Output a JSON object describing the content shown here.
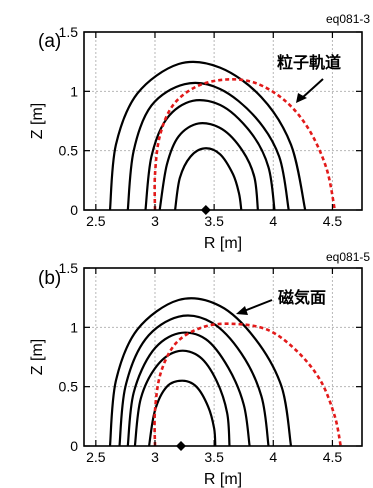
{
  "chart_data": [
    {
      "type": "line",
      "panel_label": "(a)",
      "code": "eq081-3",
      "xlabel": "R [m]",
      "ylabel": "Z [m]",
      "xlim": [
        2.4,
        4.75
      ],
      "ylim": [
        0,
        1.5
      ],
      "xticks": [
        "2.5",
        "3",
        "3.5",
        "4",
        "4.5"
      ],
      "yticks": [
        "0",
        "0.5",
        "1",
        "1.5"
      ],
      "grid": true,
      "axis_point": {
        "R": 3.43,
        "Z": 0
      },
      "series": [
        {
          "kind": "flux_surface",
          "points": [
            [
              2.62,
              0
            ],
            [
              2.67,
              0.55
            ],
            [
              2.85,
              0.98
            ],
            [
              3.2,
              1.23
            ],
            [
              3.55,
              1.2
            ],
            [
              3.9,
              0.95
            ],
            [
              4.15,
              0.55
            ],
            [
              4.27,
              0
            ]
          ]
        },
        {
          "kind": "flux_surface",
          "points": [
            [
              2.77,
              0
            ],
            [
              2.82,
              0.5
            ],
            [
              2.97,
              0.88
            ],
            [
              3.25,
              1.06
            ],
            [
              3.55,
              1.02
            ],
            [
              3.85,
              0.78
            ],
            [
              4.05,
              0.45
            ],
            [
              4.13,
              0
            ]
          ]
        },
        {
          "kind": "flux_surface",
          "points": [
            [
              2.92,
              0
            ],
            [
              2.97,
              0.45
            ],
            [
              3.1,
              0.77
            ],
            [
              3.32,
              0.92
            ],
            [
              3.58,
              0.87
            ],
            [
              3.82,
              0.64
            ],
            [
              3.96,
              0.36
            ],
            [
              4.01,
              0
            ]
          ]
        },
        {
          "kind": "flux_surface",
          "points": [
            [
              3.04,
              0
            ],
            [
              3.1,
              0.38
            ],
            [
              3.2,
              0.62
            ],
            [
              3.37,
              0.73
            ],
            [
              3.57,
              0.68
            ],
            [
              3.74,
              0.5
            ],
            [
              3.84,
              0.28
            ],
            [
              3.87,
              0
            ]
          ]
        },
        {
          "kind": "flux_surface",
          "points": [
            [
              3.17,
              0
            ],
            [
              3.21,
              0.27
            ],
            [
              3.3,
              0.45
            ],
            [
              3.42,
              0.52
            ],
            [
              3.55,
              0.47
            ],
            [
              3.66,
              0.3
            ],
            [
              3.71,
              0.14
            ],
            [
              3.73,
              0
            ]
          ]
        },
        {
          "kind": "particle_orbit",
          "points": [
            [
              3.0,
              0
            ],
            [
              3.0,
              0.3
            ],
            [
              3.04,
              0.62
            ],
            [
              3.15,
              0.88
            ],
            [
              3.35,
              1.04
            ],
            [
              3.6,
              1.1
            ],
            [
              3.85,
              1.07
            ],
            [
              4.1,
              0.92
            ],
            [
              4.3,
              0.68
            ],
            [
              4.45,
              0.35
            ],
            [
              4.52,
              0
            ]
          ]
        }
      ],
      "annotation": {
        "text": "粒子軌道",
        "target": "particle_orbit"
      }
    },
    {
      "type": "line",
      "panel_label": "(b)",
      "code": "eq081-5",
      "xlabel": "R [m]",
      "ylabel": "Z [m]",
      "xlim": [
        2.4,
        4.75
      ],
      "ylim": [
        0,
        1.5
      ],
      "xticks": [
        "2.5",
        "3",
        "3.5",
        "4",
        "4.5"
      ],
      "yticks": [
        "0",
        "0.5",
        "1",
        "1.5"
      ],
      "grid": true,
      "axis_point": {
        "R": 3.22,
        "Z": 0
      },
      "series": [
        {
          "kind": "flux_surface",
          "points": [
            [
              2.62,
              0
            ],
            [
              2.67,
              0.55
            ],
            [
              2.85,
              0.98
            ],
            [
              3.2,
              1.23
            ],
            [
              3.55,
              1.18
            ],
            [
              3.85,
              0.9
            ],
            [
              4.07,
              0.5
            ],
            [
              4.15,
              0
            ]
          ]
        },
        {
          "kind": "flux_surface",
          "points": [
            [
              2.7,
              0
            ],
            [
              2.75,
              0.5
            ],
            [
              2.92,
              0.9
            ],
            [
              3.2,
              1.09
            ],
            [
              3.48,
              1.04
            ],
            [
              3.73,
              0.78
            ],
            [
              3.9,
              0.42
            ],
            [
              3.96,
              0
            ]
          ]
        },
        {
          "kind": "flux_surface",
          "points": [
            [
              2.77,
              0
            ],
            [
              2.82,
              0.45
            ],
            [
              2.98,
              0.8
            ],
            [
              3.2,
              0.95
            ],
            [
              3.43,
              0.9
            ],
            [
              3.62,
              0.66
            ],
            [
              3.75,
              0.35
            ],
            [
              3.8,
              0
            ]
          ]
        },
        {
          "kind": "flux_surface",
          "points": [
            [
              2.83,
              0
            ],
            [
              2.88,
              0.4
            ],
            [
              3.02,
              0.68
            ],
            [
              3.2,
              0.8
            ],
            [
              3.38,
              0.75
            ],
            [
              3.52,
              0.55
            ],
            [
              3.61,
              0.28
            ],
            [
              3.63,
              0
            ]
          ]
        },
        {
          "kind": "flux_surface",
          "points": [
            [
              2.95,
              0
            ],
            [
              3.0,
              0.3
            ],
            [
              3.1,
              0.5
            ],
            [
              3.23,
              0.55
            ],
            [
              3.35,
              0.5
            ],
            [
              3.45,
              0.33
            ],
            [
              3.5,
              0.15
            ],
            [
              3.51,
              0
            ]
          ]
        },
        {
          "kind": "particle_orbit",
          "points": [
            [
              3.0,
              0
            ],
            [
              3.0,
              0.3
            ],
            [
              3.05,
              0.62
            ],
            [
              3.18,
              0.87
            ],
            [
              3.4,
              1.0
            ],
            [
              3.65,
              1.03
            ],
            [
              3.95,
              0.98
            ],
            [
              4.2,
              0.8
            ],
            [
              4.4,
              0.55
            ],
            [
              4.52,
              0.25
            ],
            [
              4.57,
              0
            ]
          ]
        }
      ],
      "annotation": {
        "text": "磁気面",
        "target": "flux_surface"
      }
    }
  ],
  "colors": {
    "surface": "#000000",
    "orbit": "#e21a1a",
    "grid": "#b8b8b8"
  }
}
